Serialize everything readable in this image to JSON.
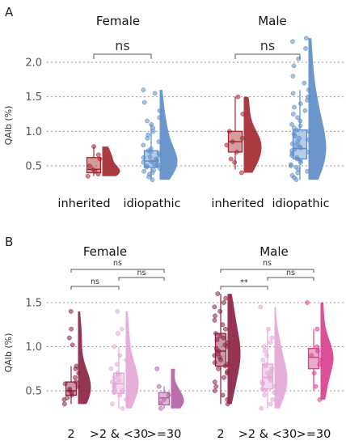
{
  "chart_data": [
    {
      "type": "raincloud",
      "panel_label": "A",
      "ylabel": "QAlb (%)",
      "yticks": [
        0.5,
        1.0,
        1.5,
        2.0
      ],
      "ytick_labels": [
        "0.5",
        "1.0",
        "1.5",
        "2.0"
      ],
      "grid": true,
      "facets": [
        {
          "title": "Female",
          "categories": [
            "inherited",
            "idiopathic"
          ],
          "groups": [
            {
              "category": "inherited",
              "color": "#a3262c",
              "box": {
                "q1": 0.4,
                "median": 0.45,
                "q3": 0.62,
                "low": 0.35,
                "high": 0.78
              },
              "points": [
                0.35,
                0.38,
                0.42,
                0.45,
                0.5,
                0.6,
                0.66,
                0.78
              ]
            },
            {
              "category": "idiopathic",
              "color": "#5b8cc8",
              "box": {
                "q1": 0.48,
                "median": 0.57,
                "q3": 0.72,
                "low": 0.3,
                "high": 1.1
              },
              "points": [
                0.3,
                0.34,
                0.38,
                0.4,
                0.42,
                0.44,
                0.46,
                0.48,
                0.5,
                0.5,
                0.52,
                0.54,
                0.55,
                0.56,
                0.58,
                0.6,
                0.62,
                0.63,
                0.65,
                0.68,
                0.7,
                0.72,
                0.75,
                0.8,
                0.85,
                0.9,
                0.95,
                1.0,
                1.05,
                1.1,
                1.15,
                1.2,
                1.3,
                1.42,
                1.55,
                1.6
              ]
            }
          ],
          "comparisons": [
            {
              "from": "inherited",
              "to": "idiopathic",
              "label": "ns"
            }
          ]
        },
        {
          "title": "Male",
          "categories": [
            "inherited",
            "idiopathic"
          ],
          "groups": [
            {
              "category": "inherited",
              "color": "#a3262c",
              "box": {
                "q1": 0.7,
                "median": 0.85,
                "q3": 1.0,
                "low": 0.45,
                "high": 1.5
              },
              "points": [
                0.4,
                0.55,
                0.6,
                0.7,
                0.8,
                0.85,
                0.9,
                1.0,
                1.25,
                1.5
              ]
            },
            {
              "category": "idiopathic",
              "color": "#5b8cc8",
              "box": {
                "q1": 0.6,
                "median": 0.75,
                "q3": 1.02,
                "low": 0.3,
                "high": 1.6
              },
              "points": [
                0.3,
                0.33,
                0.36,
                0.4,
                0.42,
                0.45,
                0.48,
                0.5,
                0.52,
                0.55,
                0.58,
                0.6,
                0.62,
                0.65,
                0.68,
                0.7,
                0.72,
                0.74,
                0.76,
                0.78,
                0.8,
                0.82,
                0.85,
                0.88,
                0.9,
                0.93,
                0.96,
                1.0,
                1.02,
                1.05,
                1.08,
                1.1,
                1.15,
                1.2,
                1.25,
                1.3,
                1.35,
                1.4,
                1.45,
                1.5,
                1.55,
                1.6,
                1.7,
                1.8,
                1.95,
                2.05,
                2.2,
                2.3,
                2.35
              ]
            }
          ],
          "comparisons": [
            {
              "from": "inherited",
              "to": "idiopathic",
              "label": "ns"
            }
          ]
        }
      ]
    },
    {
      "type": "raincloud",
      "panel_label": "B",
      "ylabel": "QAlb (%)",
      "yticks": [
        0.5,
        1.0,
        1.5
      ],
      "ytick_labels": [
        "0.5",
        "1.0",
        "1.5"
      ],
      "grid": true,
      "facets": [
        {
          "title": "Female",
          "categories": [
            "2",
            ">2 & <30",
            ">=30"
          ],
          "groups": [
            {
              "category": "2",
              "color": "#8b1f3f",
              "box": {
                "q1": 0.45,
                "median": 0.5,
                "q3": 0.6,
                "low": 0.35,
                "high": 0.78
              },
              "points": [
                0.35,
                0.4,
                0.42,
                0.45,
                0.48,
                0.5,
                0.52,
                0.55,
                0.58,
                0.6,
                0.65,
                0.7,
                0.75,
                0.78,
                1.02,
                1.1,
                1.2,
                1.4
              ]
            },
            {
              "category": ">2 & <30",
              "color": "#e2a6d6",
              "box": {
                "q1": 0.47,
                "median": 0.58,
                "q3": 0.7,
                "low": 0.3,
                "high": 1.0
              },
              "points": [
                0.3,
                0.35,
                0.4,
                0.45,
                0.48,
                0.5,
                0.52,
                0.55,
                0.58,
                0.6,
                0.62,
                0.65,
                0.68,
                0.7,
                0.75,
                0.8,
                0.85,
                0.9,
                1.0,
                1.15,
                1.2,
                1.4
              ]
            },
            {
              "category": ">=30",
              "color": "#b25ea3",
              "box": {
                "q1": 0.34,
                "median": 0.42,
                "q3": 0.48,
                "low": 0.3,
                "high": 0.55
              },
              "points": [
                0.3,
                0.36,
                0.4,
                0.45,
                0.55,
                0.75
              ]
            }
          ],
          "comparisons": [
            {
              "from": "2",
              "to": ">2 & <30",
              "label": "ns"
            },
            {
              "from": ">2 & <30",
              "to": ">=30",
              "label": "ns"
            },
            {
              "from": "2",
              "to": ">=30",
              "label": "ns"
            }
          ]
        },
        {
          "title": "Male",
          "categories": [
            "2",
            ">2 & <30",
            ">=30"
          ],
          "groups": [
            {
              "category": "2",
              "color": "#8b1f3f",
              "box": {
                "q1": 0.78,
                "median": 0.95,
                "q3": 1.15,
                "low": 0.35,
                "high": 1.6
              },
              "points": [
                0.35,
                0.4,
                0.45,
                0.5,
                0.55,
                0.6,
                0.65,
                0.7,
                0.72,
                0.75,
                0.78,
                0.8,
                0.82,
                0.85,
                0.88,
                0.9,
                0.92,
                0.95,
                0.98,
                1.0,
                1.02,
                1.05,
                1.08,
                1.1,
                1.12,
                1.15,
                1.2,
                1.25,
                1.3,
                1.35,
                1.4,
                1.45,
                1.5,
                1.55,
                1.6
              ]
            },
            {
              "category": ">2 & <30",
              "color": "#e2a6d6",
              "box": {
                "q1": 0.52,
                "median": 0.65,
                "q3": 0.8,
                "low": 0.3,
                "high": 1.2
              },
              "points": [
                0.3,
                0.35,
                0.4,
                0.45,
                0.48,
                0.5,
                0.52,
                0.55,
                0.58,
                0.6,
                0.62,
                0.65,
                0.68,
                0.7,
                0.72,
                0.75,
                0.78,
                0.8,
                0.85,
                0.9,
                0.95,
                1.0,
                1.05,
                1.1,
                1.2,
                1.45
              ]
            },
            {
              "category": ">=30",
              "color": "#d93d8c",
              "box": {
                "q1": 0.75,
                "median": 0.88,
                "q3": 0.98,
                "low": 0.5,
                "high": 1.2
              },
              "points": [
                0.4,
                0.55,
                0.7,
                0.8,
                0.85,
                0.9,
                0.95,
                1.0,
                1.2,
                1.5
              ]
            }
          ],
          "comparisons": [
            {
              "from": "2",
              "to": ">2 & <30",
              "label": "**"
            },
            {
              "from": ">2 & <30",
              "to": ">=30",
              "label": "ns"
            },
            {
              "from": "2",
              "to": ">=30",
              "label": "ns"
            }
          ]
        }
      ]
    }
  ]
}
